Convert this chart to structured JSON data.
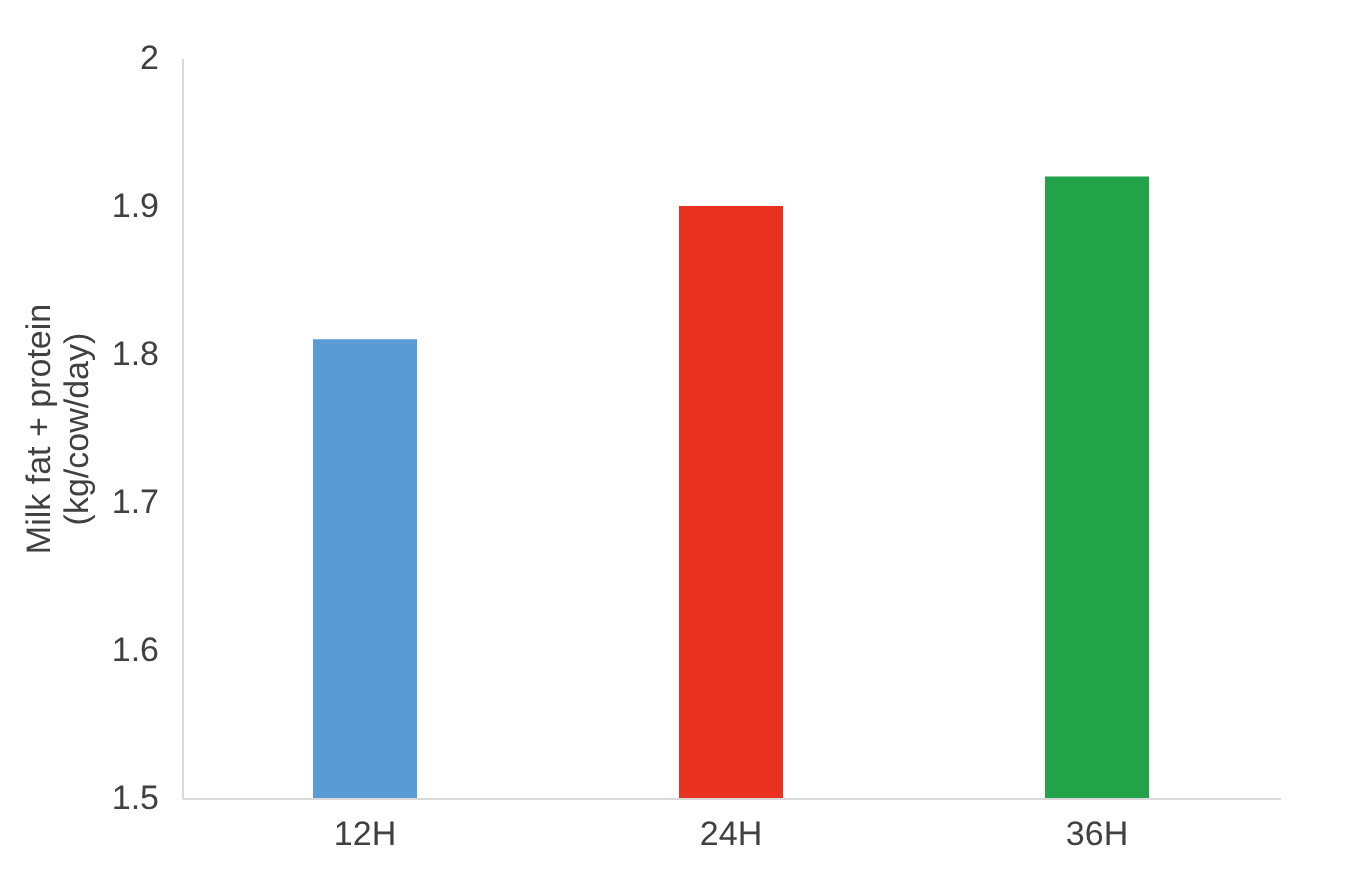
{
  "chart_data": {
    "type": "bar",
    "categories": [
      "12H",
      "24H",
      "36H"
    ],
    "values": [
      1.81,
      1.9,
      1.92
    ],
    "colors": [
      "#5b9bd5",
      "#e8311f",
      "#22a34a"
    ],
    "ylabel": "Milk fat + protein\n(kg/cow/day)",
    "ylim": [
      1.5,
      2
    ],
    "yticks": [
      1.5,
      1.6,
      1.7,
      1.8,
      1.9,
      {
        "value": 2,
        "label": "2"
      }
    ],
    "grid": false
  }
}
